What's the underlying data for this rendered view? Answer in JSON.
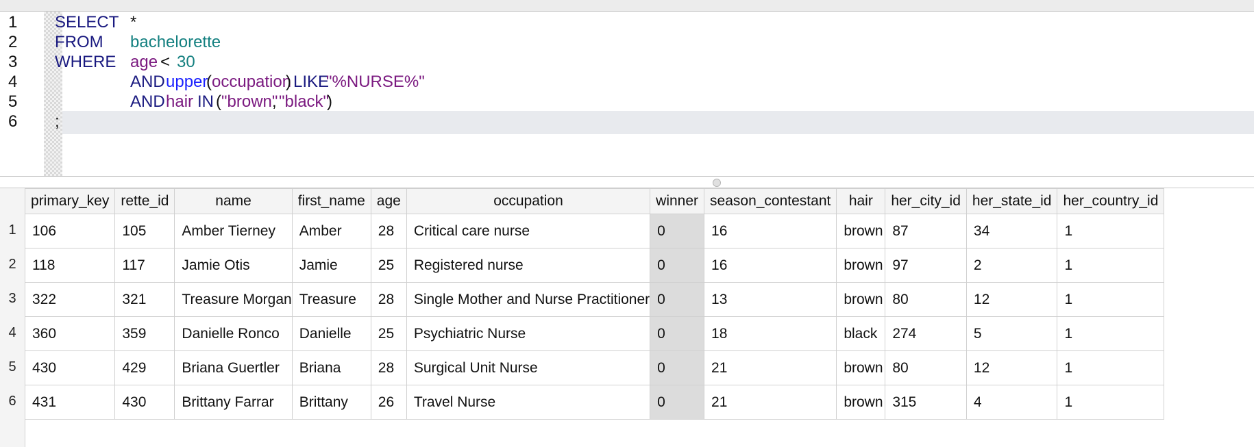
{
  "editor": {
    "lines": [
      {
        "no": "1",
        "tokens": [
          {
            "text": "SELECT",
            "kind": "kw",
            "col": "a"
          },
          {
            "text": "*",
            "kind": "op",
            "col": "b"
          }
        ]
      },
      {
        "no": "2",
        "tokens": [
          {
            "text": "FROM",
            "kind": "kw",
            "col": "a"
          },
          {
            "text": "bachelorette",
            "kind": "tbl",
            "col": "b"
          }
        ]
      },
      {
        "no": "3",
        "tokens": [
          {
            "text": "WHERE",
            "kind": "kw",
            "col": "a"
          },
          {
            "text": "age",
            "kind": "id",
            "col": "b"
          },
          {
            "text": "<",
            "kind": "op",
            "col": "b2"
          },
          {
            "text": "30",
            "kind": "num",
            "col": "b3"
          }
        ]
      },
      {
        "no": "4",
        "tokens": [
          {
            "text": "AND",
            "kind": "kw",
            "col": "b"
          },
          {
            "text": "upper",
            "kind": "fn",
            "col": "c1"
          },
          {
            "text": "(",
            "kind": "op",
            "col": "c2"
          },
          {
            "text": "occupation",
            "kind": "id",
            "col": "c3"
          },
          {
            "text": ")",
            "kind": "op",
            "col": "c4"
          },
          {
            "text": "LIKE",
            "kind": "kw",
            "col": "c5"
          },
          {
            "text": "\"%NURSE%\"",
            "kind": "str",
            "col": "c6"
          }
        ]
      },
      {
        "no": "5",
        "tokens": [
          {
            "text": "AND",
            "kind": "kw",
            "col": "b"
          },
          {
            "text": "hair",
            "kind": "id",
            "col": "d1"
          },
          {
            "text": "IN",
            "kind": "kw",
            "col": "d2"
          },
          {
            "text": "(",
            "kind": "op",
            "col": "d3"
          },
          {
            "text": "\"brown\"",
            "kind": "str",
            "col": "d4"
          },
          {
            "text": ",",
            "kind": "op",
            "col": "d5"
          },
          {
            "text": "\"black\"",
            "kind": "str",
            "col": "d6"
          },
          {
            "text": ")",
            "kind": "op",
            "col": "d7"
          }
        ]
      },
      {
        "no": "6",
        "tokens": [
          {
            "text": ";",
            "kind": "op",
            "col": "a"
          }
        ]
      }
    ]
  },
  "results": {
    "columns": [
      "primary_key",
      "rette_id",
      "name",
      "first_name",
      "age",
      "occupation",
      "winner",
      "season_contestant",
      "hair",
      "her_city_id",
      "her_state_id",
      "her_country_id"
    ],
    "row_numbers": [
      "1",
      "2",
      "3",
      "4",
      "5",
      "6"
    ],
    "rows": [
      [
        "106",
        "105",
        "Amber Tierney",
        "Amber",
        "28",
        "Critical care nurse",
        "0",
        "16",
        "brown",
        "87",
        "34",
        "1"
      ],
      [
        "118",
        "117",
        "Jamie Otis",
        "Jamie",
        "25",
        "Registered nurse",
        "0",
        "16",
        "brown",
        "97",
        "2",
        "1"
      ],
      [
        "322",
        "321",
        "Treasure Morgan",
        "Treasure",
        "28",
        "Single Mother and Nurse Practitioner",
        "0",
        "13",
        "brown",
        "80",
        "12",
        "1"
      ],
      [
        "360",
        "359",
        "Danielle Ronco",
        "Danielle",
        "25",
        "Psychiatric Nurse",
        "0",
        "18",
        "black",
        "274",
        "5",
        "1"
      ],
      [
        "430",
        "429",
        "Briana Guertler",
        "Briana",
        "28",
        "Surgical Unit Nurse",
        "0",
        "21",
        "brown",
        "80",
        "12",
        "1"
      ],
      [
        "431",
        "430",
        "Brittany Farrar",
        "Brittany",
        "26",
        "Travel Nurse",
        "0",
        "21",
        "brown",
        "315",
        "4",
        "1"
      ]
    ]
  }
}
